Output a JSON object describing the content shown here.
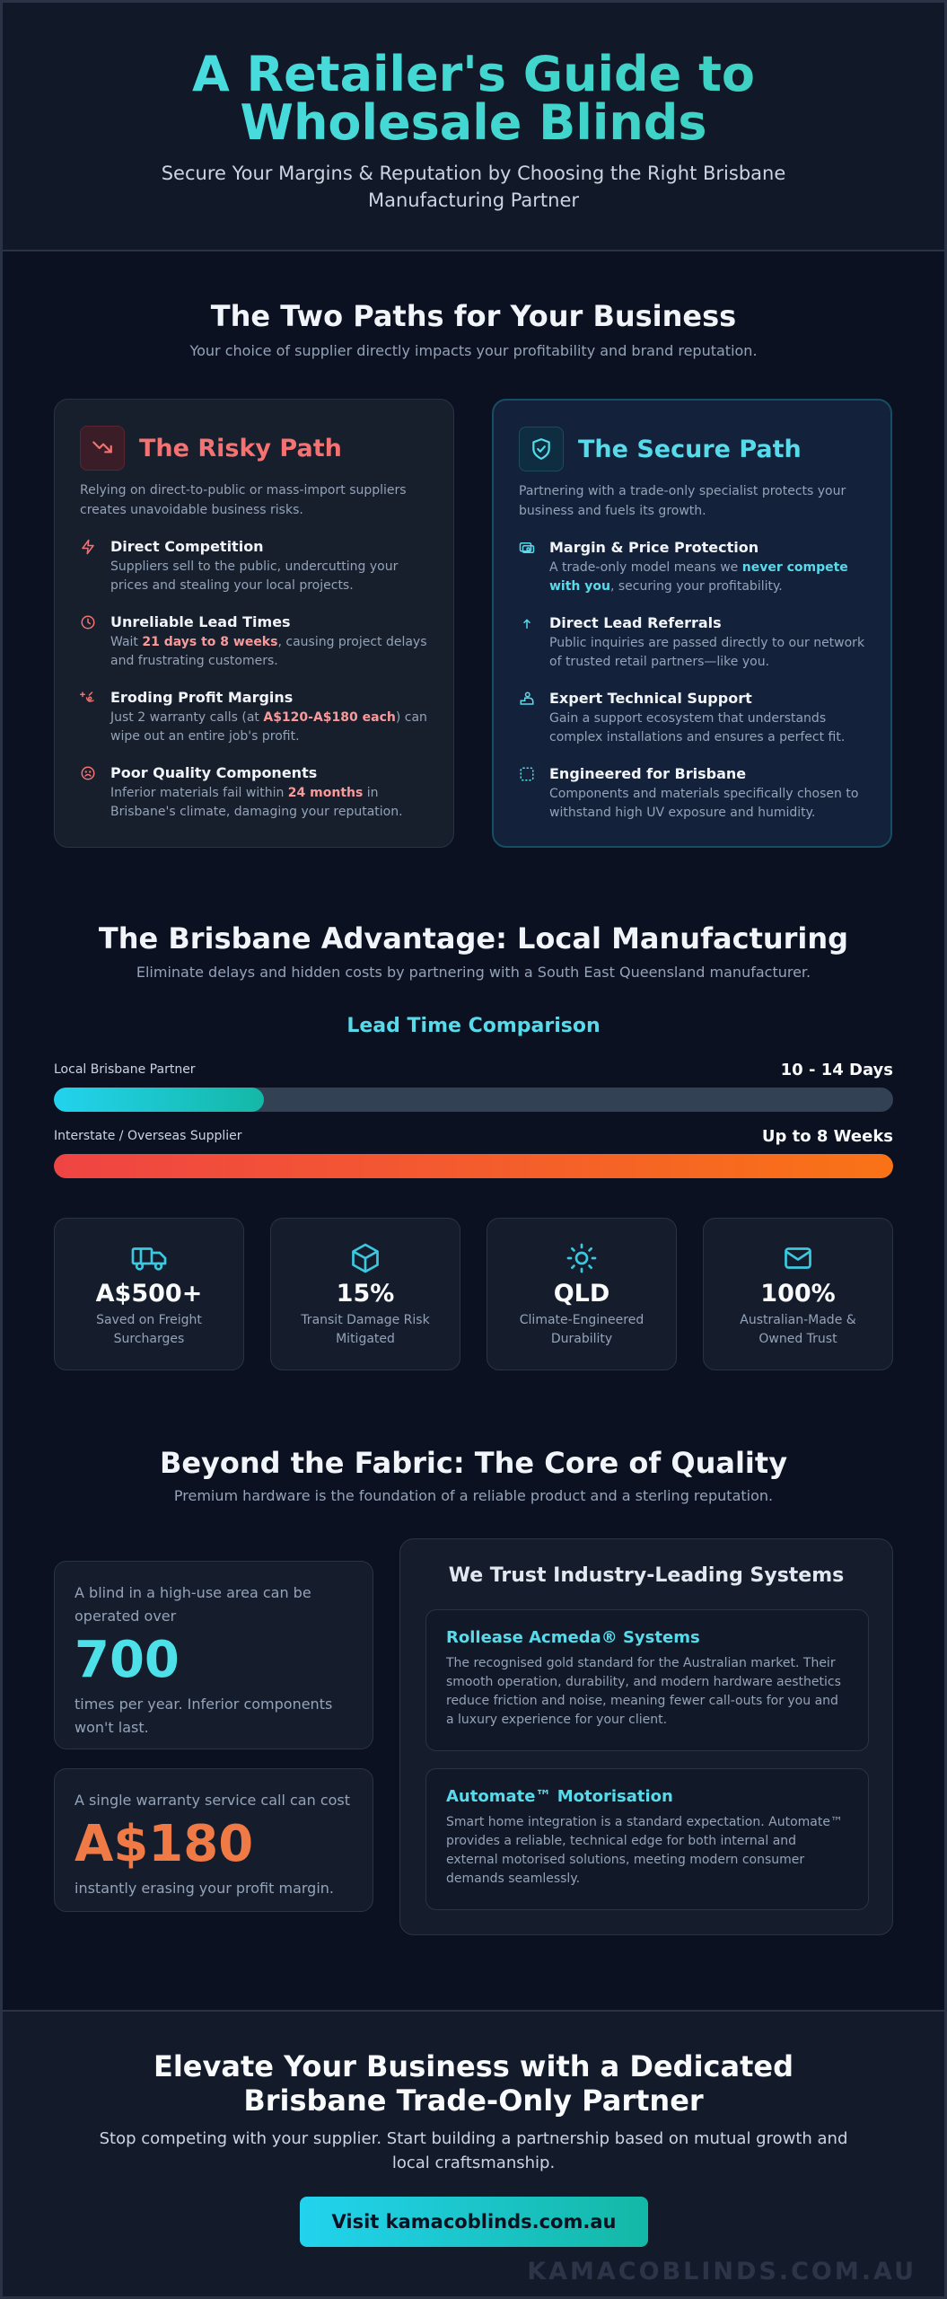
{
  "header": {
    "title": "A Retailer's Guide to Wholesale Blinds",
    "subtitle": "Secure Your Margins & Reputation by Choosing the Right Brisbane Manufacturing Partner"
  },
  "paths": {
    "title": "The Two Paths for Your Business",
    "subtitle": "Your choice of supplier directly impacts your profitability and brand reputation.",
    "risky": {
      "title": "The Risky Path",
      "icon": "trend-down-icon",
      "description": "Relying on direct-to-public or mass-import suppliers creates unavoidable business risks.",
      "items": [
        {
          "title": "Direct Competition",
          "pre": "Suppliers sell to the public, undercutting your prices and stealing your local projects.",
          "hl": "",
          "post": "",
          "icon": "lightning-icon"
        },
        {
          "title": "Unreliable Lead Times",
          "pre": "Wait ",
          "hl": "21 days to 8 weeks",
          "post": ", causing project delays and frustrating customers.",
          "icon": "clock-icon"
        },
        {
          "title": "Eroding Profit Margins",
          "pre": "Just 2 warranty calls (at ",
          "hl": "A$120-A$180 each",
          "post": ") can wipe out an entire job's profit.",
          "icon": "money-loss-icon"
        },
        {
          "title": "Poor Quality Components",
          "pre": "Inferior materials fail within ",
          "hl": "24 months",
          "post": " in Brisbane's climate, damaging your reputation.",
          "icon": "sad-face-icon"
        }
      ]
    },
    "secure": {
      "title": "The Secure Path",
      "icon": "shield-check-icon",
      "description": "Partnering with a trade-only specialist protects your business and fuels its growth.",
      "items": [
        {
          "title": "Margin & Price Protection",
          "pre": "A trade-only model means we ",
          "hl": "never compete with you",
          "post": ", securing your profitability.",
          "icon": "price-tag-icon"
        },
        {
          "title": "Direct Lead Referrals",
          "pre": "Public inquiries are passed directly to our network of trusted retail partners—like you.",
          "hl": "",
          "post": "",
          "icon": "arrow-up-icon"
        },
        {
          "title": "Expert Technical Support",
          "pre": "Gain a support ecosystem that understands complex installations and ensures a perfect fit.",
          "hl": "",
          "post": "",
          "icon": "support-agent-icon"
        },
        {
          "title": "Engineered for Brisbane",
          "pre": "Components and materials specifically chosen to withstand high UV exposure and humidity.",
          "hl": "",
          "post": "",
          "icon": "dashed-frame-icon"
        }
      ]
    }
  },
  "advantage": {
    "title": "The Brisbane Advantage: Local Manufacturing",
    "subtitle": "Eliminate delays and hidden costs by partnering with a South East Queensland manufacturer.",
    "lead_title": "Lead Time Comparison",
    "bars": [
      {
        "label": "Local Brisbane Partner",
        "value": "10 - 14 Days",
        "fill": 0.25
      },
      {
        "label": "Interstate / Overseas Supplier",
        "value": "Up to 8 Weeks",
        "fill": 1.0
      }
    ],
    "stats": [
      {
        "value": "A$500+",
        "label": "Saved on Freight Surcharges",
        "icon": "truck-icon"
      },
      {
        "value": "15%",
        "label": "Transit Damage Risk Mitigated",
        "icon": "box-icon"
      },
      {
        "value": "QLD",
        "label": "Climate-Engineered Durability",
        "icon": "sun-icon"
      },
      {
        "value": "100%",
        "label": "Australian-Made & Owned Trust",
        "icon": "mail-icon"
      }
    ]
  },
  "quality": {
    "title": "Beyond the Fabric: The Core of Quality",
    "subtitle": "Premium hardware is the foundation of a reliable product and a sterling reputation.",
    "cards": [
      {
        "pre": "A blind in a high-use area can be operated over",
        "big": "700",
        "post": "times per year. Inferior components won't last."
      },
      {
        "pre": "A single warranty service call can cost",
        "big": "A$180",
        "post": "instantly erasing your profit margin."
      }
    ],
    "systems_title": "We Trust Industry-Leading Systems",
    "systems": [
      {
        "title": "Rollease Acmeda® Systems",
        "text": "The recognised gold standard for the Australian market. Their smooth operation, durability, and modern hardware aesthetics reduce friction and noise, meaning fewer call-outs for you and a luxury experience for your client."
      },
      {
        "title": "Automate™ Motorisation",
        "text": "Smart home integration is a standard expectation. Automate™ provides a reliable, technical edge for both internal and external motorised solutions, meeting modern consumer demands seamlessly."
      }
    ]
  },
  "footer": {
    "title": "Elevate Your Business with a Dedicated Brisbane Trade-Only Partner",
    "subtitle": "Stop competing with your supplier. Start building a partnership based on mutual growth and local craftsmanship.",
    "cta": "Visit kamacoblinds.com.au",
    "watermark": "KAMACOBLINDS.COM.AU"
  },
  "colors": {
    "accent_cyan": "#57dbeb",
    "accent_teal": "#14b8a6",
    "danger": "#f47272",
    "orange": "#f07a45",
    "background": "#0b1120"
  }
}
